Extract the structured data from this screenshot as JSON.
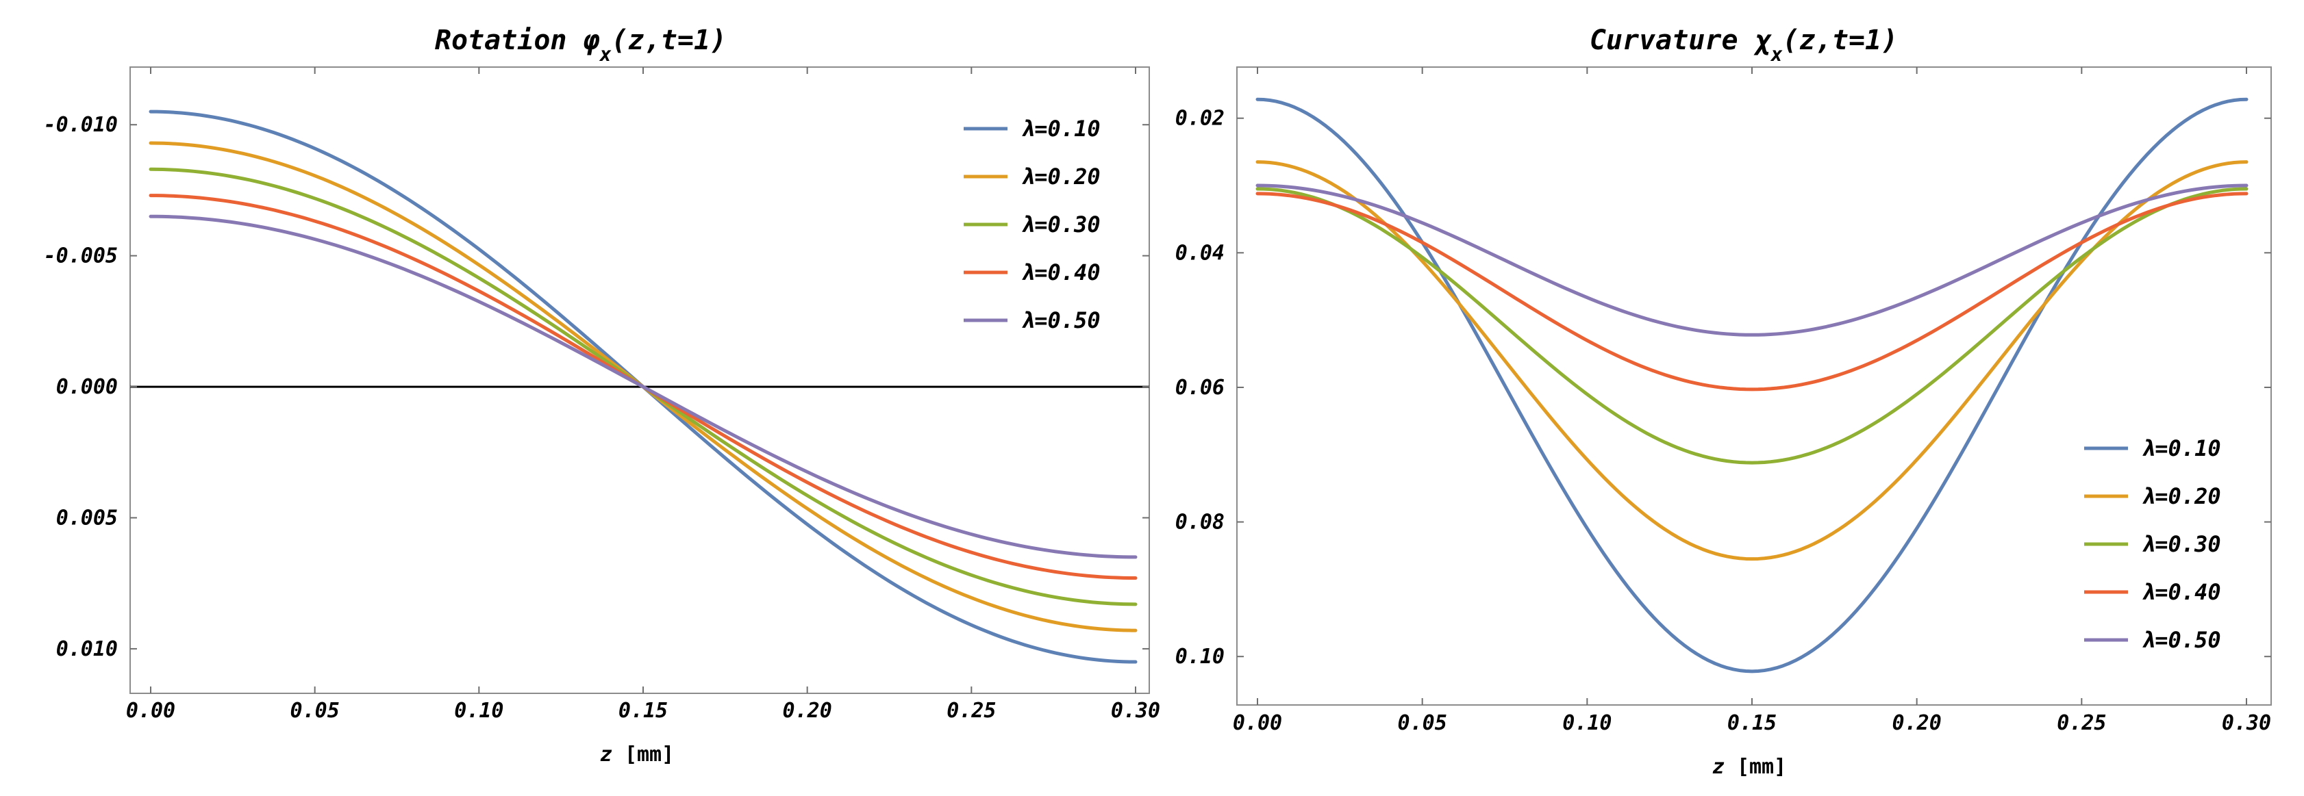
{
  "chart_data": [
    {
      "type": "line",
      "title_main": "Rotation",
      "title_sym": "φ",
      "title_sub": "x",
      "title_args": "(z,t=1)",
      "xlabel_var": "z",
      "xlabel_unit": "[mm]",
      "xlim": [
        0,
        0.3
      ],
      "ylim": [
        -0.0122,
        0.0117
      ],
      "y_inverted": true,
      "xticks": [
        "0.00",
        "0.05",
        "0.10",
        "0.15",
        "0.20",
        "0.25",
        "0.30"
      ],
      "xtick_values": [
        0,
        0.05,
        0.1,
        0.15,
        0.2,
        0.25,
        0.3
      ],
      "yticks": [
        "-0.010",
        "-0.005",
        "0.000",
        "0.005",
        "0.010"
      ],
      "ytick_values": [
        -0.01,
        -0.005,
        0.0,
        0.005,
        0.01
      ],
      "zero_line": true,
      "legend_position": "top-right",
      "series": [
        {
          "name": "λ=0.10",
          "color": "#5e81b5",
          "amplitude": 0.0105
        },
        {
          "name": "λ=0.20",
          "color": "#e19c24",
          "amplitude": 0.0093
        },
        {
          "name": "λ=0.30",
          "color": "#8fb032",
          "amplitude": 0.0083
        },
        {
          "name": "λ=0.40",
          "color": "#eb6235",
          "amplitude": 0.0073
        },
        {
          "name": "λ=0.50",
          "color": "#8778b3",
          "amplitude": 0.0065
        }
      ]
    },
    {
      "type": "line",
      "title_main": "Curvature",
      "title_sym": "χ",
      "title_sub": "x",
      "title_args": "(z,t=1)",
      "xlabel_var": "z",
      "xlabel_unit": "[mm]",
      "xlim": [
        0,
        0.3
      ],
      "ylim": [
        0.0124,
        0.1072
      ],
      "y_inverted": true,
      "xticks": [
        "0.00",
        "0.05",
        "0.10",
        "0.15",
        "0.20",
        "0.25",
        "0.30"
      ],
      "xtick_values": [
        0,
        0.05,
        0.1,
        0.15,
        0.2,
        0.25,
        0.3
      ],
      "yticks": [
        "0.02",
        "0.04",
        "0.06",
        "0.08",
        "0.10"
      ],
      "ytick_values": [
        0.02,
        0.04,
        0.06,
        0.08,
        0.1
      ],
      "zero_line": false,
      "legend_position": "bottom-right",
      "series": [
        {
          "name": "λ=0.10",
          "color": "#5e81b5",
          "edge": 0.0172,
          "center": 0.1022
        },
        {
          "name": "λ=0.20",
          "color": "#e19c24",
          "edge": 0.0265,
          "center": 0.0855
        },
        {
          "name": "λ=0.30",
          "color": "#8fb032",
          "edge": 0.0305,
          "center": 0.0712
        },
        {
          "name": "λ=0.40",
          "color": "#eb6235",
          "edge": 0.0312,
          "center": 0.0603
        },
        {
          "name": "λ=0.50",
          "color": "#8778b3",
          "edge": 0.03,
          "center": 0.0522
        }
      ]
    }
  ]
}
